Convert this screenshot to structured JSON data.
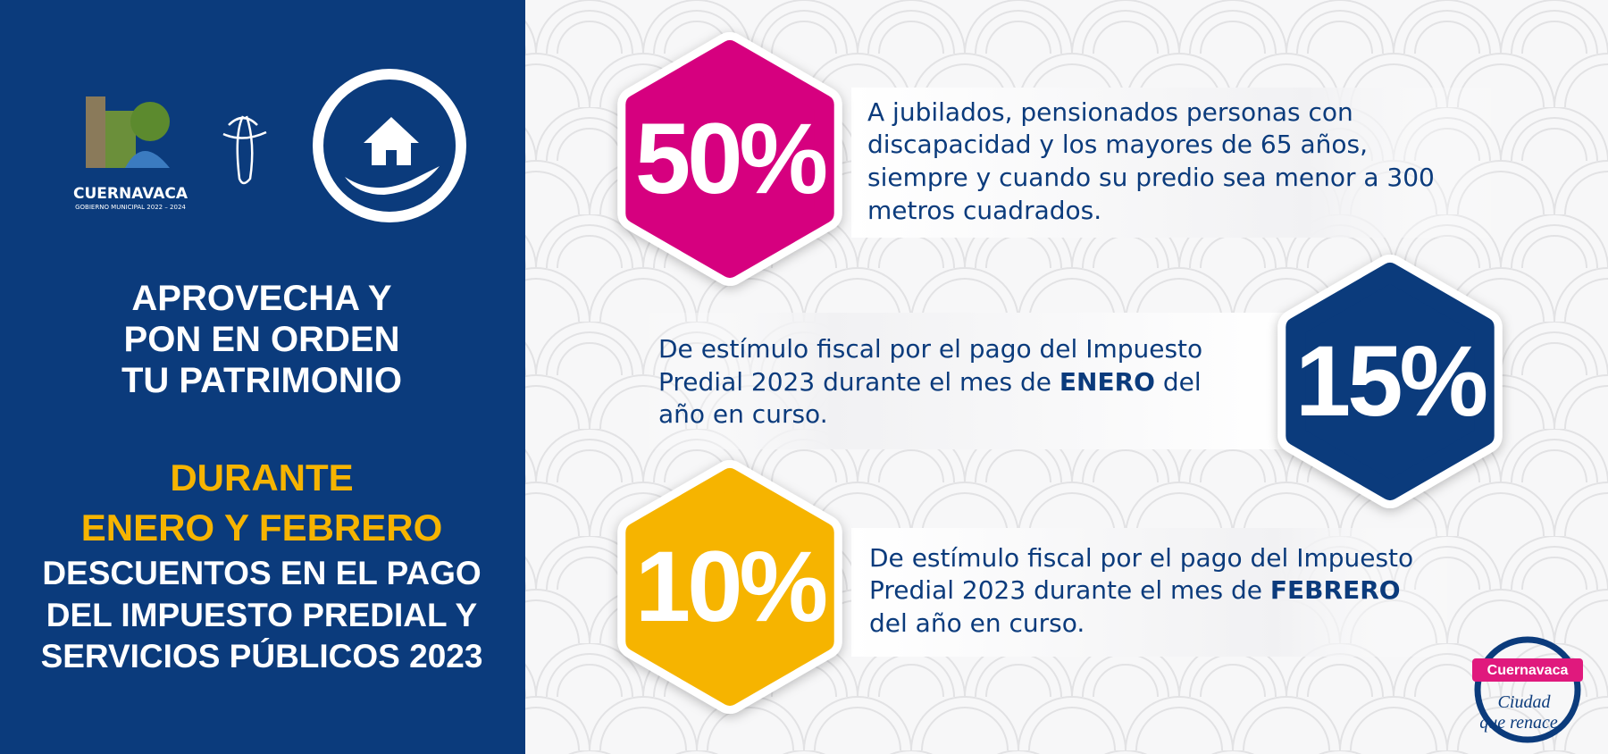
{
  "logos": {
    "city": "CUERNAVACA",
    "government": "GOBIERNO MUNICIPAL 2022 – 2024"
  },
  "headline": [
    "APROVECHA Y",
    "PON EN ORDEN",
    "TU PATRIMONIO"
  ],
  "period": [
    "DURANTE",
    "ENERO Y FEBRERO"
  ],
  "subject": [
    "DESCUENTOS EN EL PAGO",
    "DEL IMPUESTO PREDIAL Y",
    "SERVICIOS PÚBLICOS 2023"
  ],
  "items": [
    {
      "percent": "50%",
      "lines": [
        [
          "A jubilados, pensionados personas con"
        ],
        [
          "discapacidad y los mayores de 65 años,"
        ],
        [
          "siempre y cuando su predio sea menor a 300"
        ],
        [
          "metros cuadrados."
        ]
      ]
    },
    {
      "percent": "15%",
      "lines": [
        [
          "De estímulo fiscal por el pago del Impuesto"
        ],
        [
          "Predial 2023 durante el mes de ",
          "ENERO",
          " del"
        ],
        [
          "año en curso."
        ]
      ]
    },
    {
      "percent": "10%",
      "lines": [
        [
          "De estímulo fiscal por el pago del Impuesto"
        ],
        [
          "Predial 2023 durante el mes de ",
          "FEBRERO"
        ],
        [
          "del año en curso."
        ]
      ]
    }
  ],
  "badge": {
    "name": "Cuernavaca",
    "slogan": [
      "Ciudad",
      "que renace"
    ]
  }
}
